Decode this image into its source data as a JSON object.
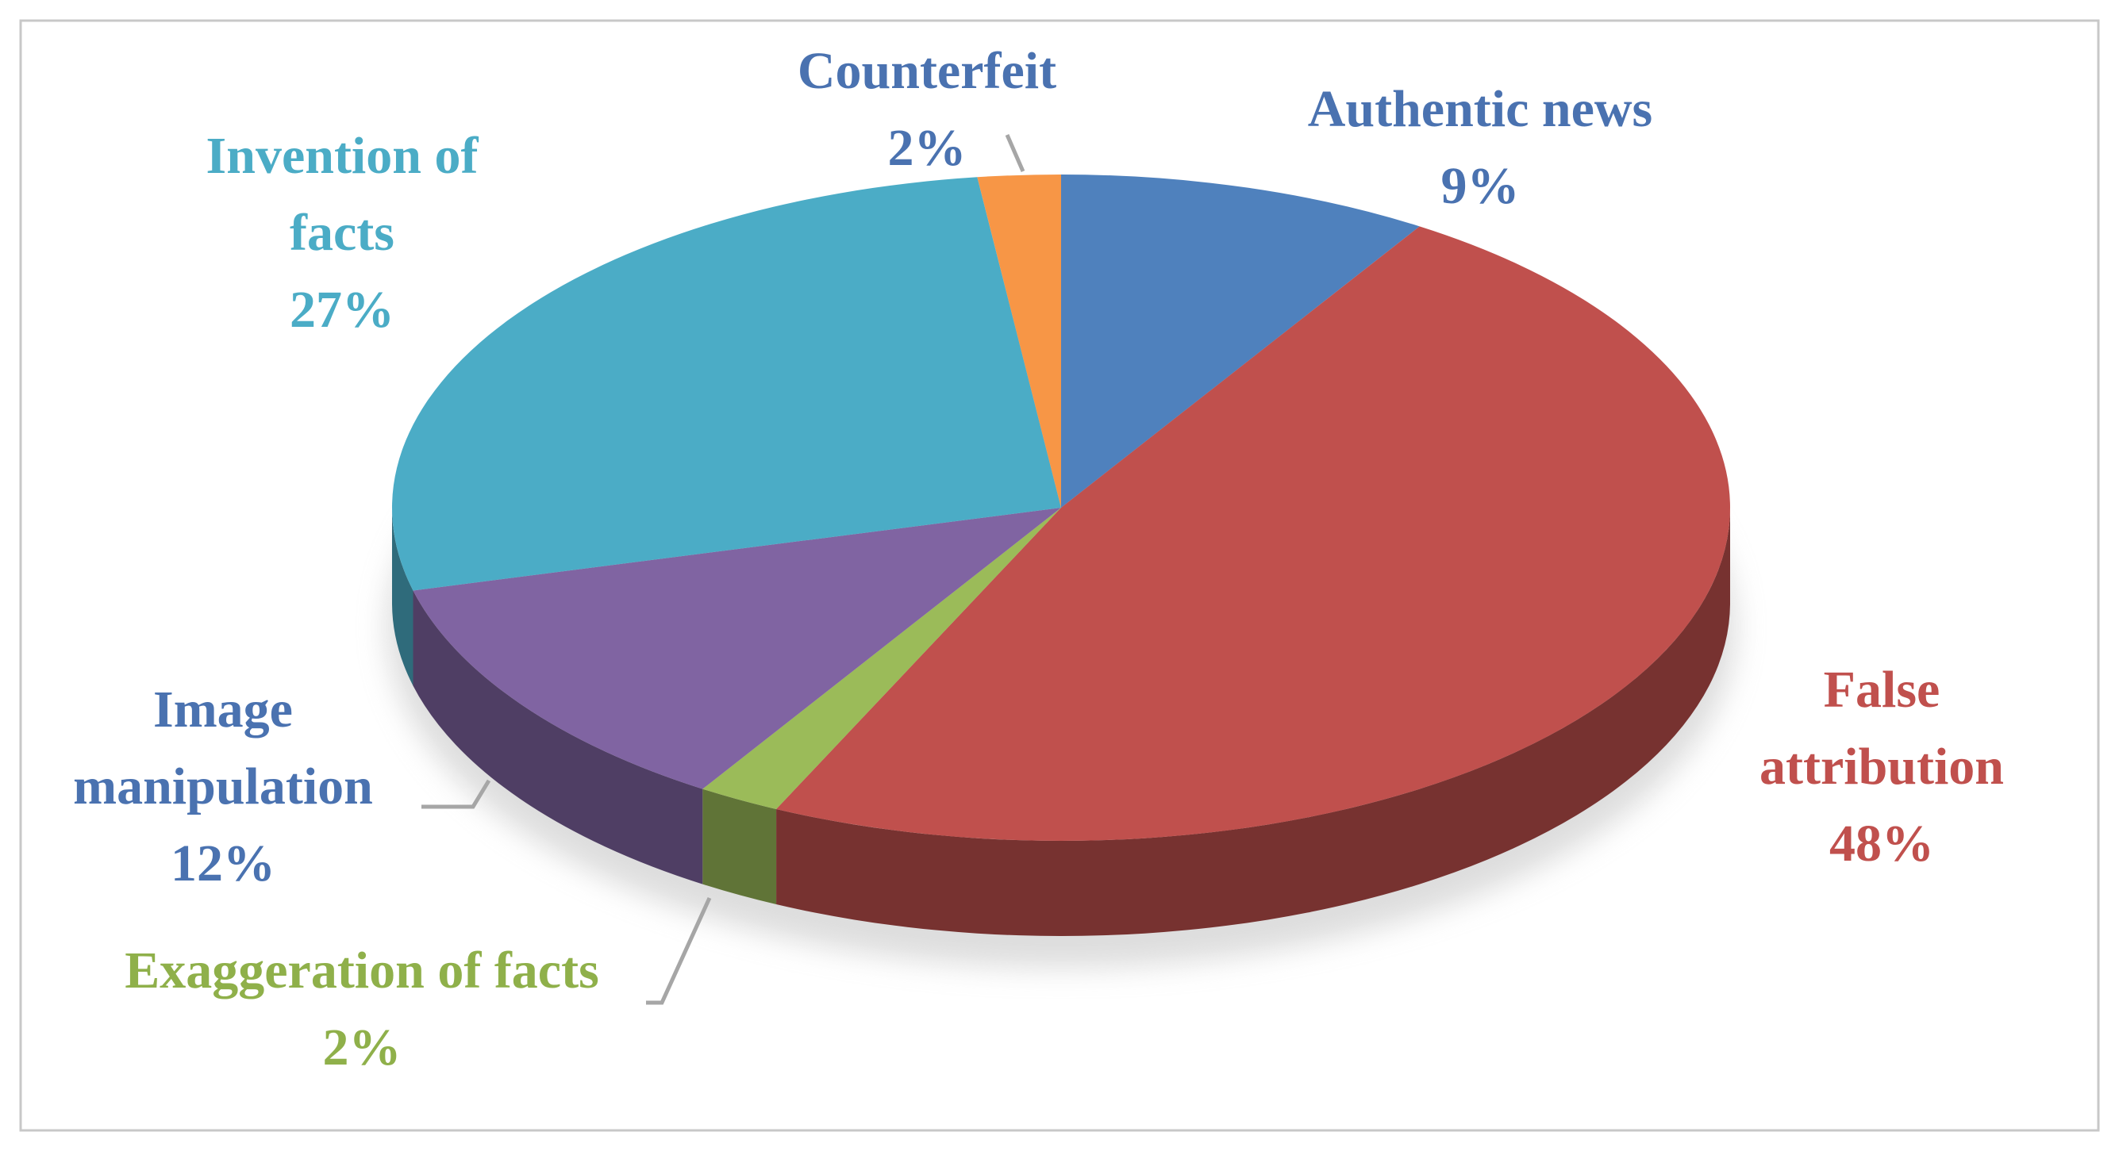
{
  "chart_data": {
    "type": "pie",
    "categories": [
      "Authentic news",
      "False attribution",
      "Exaggeration of facts",
      "Image manipulation",
      "Invention of facts",
      "Counterfeit"
    ],
    "values": [
      9,
      48,
      2,
      12,
      27,
      2
    ],
    "value_labels": [
      "9%",
      "48%",
      "2%",
      "12%",
      "27%",
      "2%"
    ],
    "colors": [
      "#4f81bd",
      "#c0504d",
      "#9bbb59",
      "#8064a2",
      "#4bacc6",
      "#f79646"
    ],
    "label_colors": [
      "#4a72b0",
      "#c0504d",
      "#8fb04a",
      "#4a72b0",
      "#4bacc6",
      "#4a72b0"
    ]
  }
}
